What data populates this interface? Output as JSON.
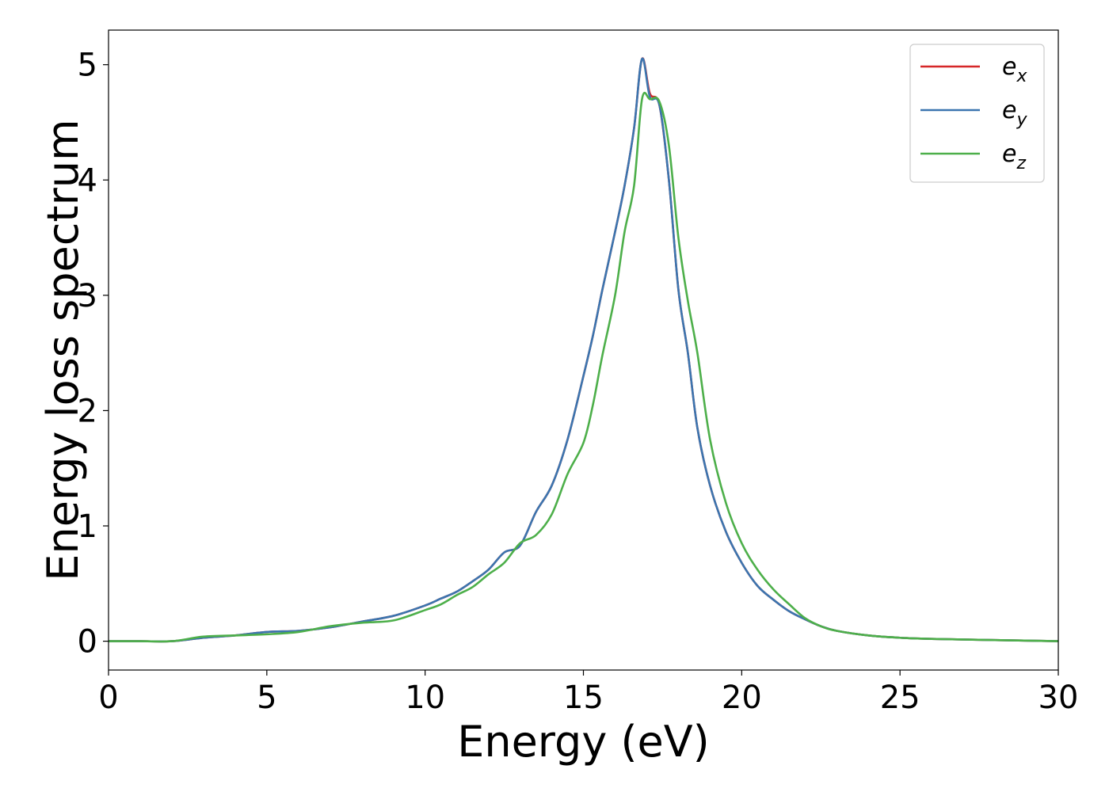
{
  "chart_data": {
    "type": "line",
    "title": "",
    "xlabel": "Energy (eV)",
    "ylabel": "Energy loss spectrum",
    "xlim": [
      0,
      30
    ],
    "ylim": [
      -0.25,
      5.3
    ],
    "xticks": [
      0,
      5,
      10,
      15,
      20,
      25,
      30
    ],
    "yticks": [
      0,
      1,
      2,
      3,
      4,
      5
    ],
    "grid": false,
    "legend_position": "top-right",
    "series": [
      {
        "name": "e",
        "subscript": "x",
        "color": "#d62728",
        "x": [
          0,
          1,
          2,
          3,
          4,
          5,
          6,
          7,
          8,
          9,
          10,
          10.5,
          11,
          11.5,
          12,
          12.5,
          13,
          13.5,
          14,
          14.5,
          15,
          15.3,
          15.6,
          16,
          16.3,
          16.6,
          16.85,
          17.1,
          17.4,
          17.7,
          18,
          18.3,
          18.6,
          19,
          19.5,
          20,
          20.5,
          21,
          21.5,
          22,
          22.5,
          23,
          24,
          25,
          26,
          28,
          30
        ],
        "y": [
          0,
          0,
          0,
          0.03,
          0.05,
          0.08,
          0.09,
          0.12,
          0.17,
          0.22,
          0.31,
          0.37,
          0.43,
          0.52,
          0.62,
          0.77,
          0.83,
          1.12,
          1.35,
          1.75,
          2.3,
          2.65,
          3.05,
          3.55,
          3.95,
          4.45,
          5.05,
          4.75,
          4.65,
          4.0,
          3.05,
          2.5,
          1.85,
          1.35,
          0.95,
          0.68,
          0.48,
          0.36,
          0.26,
          0.19,
          0.13,
          0.09,
          0.05,
          0.03,
          0.02,
          0.01,
          0.0
        ]
      },
      {
        "name": "e",
        "subscript": "y",
        "color": "#3b75af",
        "x": [
          0,
          1,
          2,
          3,
          4,
          5,
          6,
          7,
          8,
          9,
          10,
          10.5,
          11,
          11.5,
          12,
          12.5,
          13,
          13.5,
          14,
          14.5,
          15,
          15.3,
          15.6,
          16,
          16.3,
          16.6,
          16.85,
          17.1,
          17.4,
          17.7,
          18,
          18.3,
          18.6,
          19,
          19.5,
          20,
          20.5,
          21,
          21.5,
          22,
          22.5,
          23,
          24,
          25,
          26,
          28,
          30
        ],
        "y": [
          0,
          0,
          0,
          0.03,
          0.05,
          0.08,
          0.09,
          0.12,
          0.17,
          0.22,
          0.31,
          0.37,
          0.43,
          0.52,
          0.62,
          0.77,
          0.83,
          1.12,
          1.35,
          1.75,
          2.3,
          2.65,
          3.05,
          3.55,
          3.95,
          4.45,
          5.05,
          4.72,
          4.65,
          4.0,
          3.05,
          2.5,
          1.85,
          1.35,
          0.95,
          0.68,
          0.48,
          0.36,
          0.26,
          0.19,
          0.13,
          0.09,
          0.05,
          0.03,
          0.02,
          0.01,
          0.0
        ]
      },
      {
        "name": "e",
        "subscript": "z",
        "color": "#4daf4a",
        "x": [
          0,
          1,
          2,
          3,
          4,
          5,
          6,
          7,
          8,
          9,
          10,
          10.5,
          11,
          11.5,
          12,
          12.5,
          13,
          13.5,
          14,
          14.5,
          15,
          15.3,
          15.6,
          16,
          16.3,
          16.6,
          16.85,
          17.1,
          17.4,
          17.7,
          18,
          18.3,
          18.6,
          19,
          19.5,
          20,
          20.5,
          21,
          21.5,
          22,
          22.5,
          23,
          24,
          25,
          26,
          28,
          30
        ],
        "y": [
          0,
          0,
          0,
          0.04,
          0.05,
          0.06,
          0.08,
          0.13,
          0.16,
          0.18,
          0.27,
          0.32,
          0.4,
          0.47,
          0.58,
          0.68,
          0.85,
          0.92,
          1.1,
          1.45,
          1.72,
          2.05,
          2.48,
          3.0,
          3.55,
          3.95,
          4.7,
          4.7,
          4.68,
          4.3,
          3.5,
          2.95,
          2.5,
          1.75,
          1.2,
          0.85,
          0.62,
          0.45,
          0.32,
          0.2,
          0.13,
          0.09,
          0.05,
          0.03,
          0.02,
          0.01,
          0.0
        ]
      }
    ]
  }
}
